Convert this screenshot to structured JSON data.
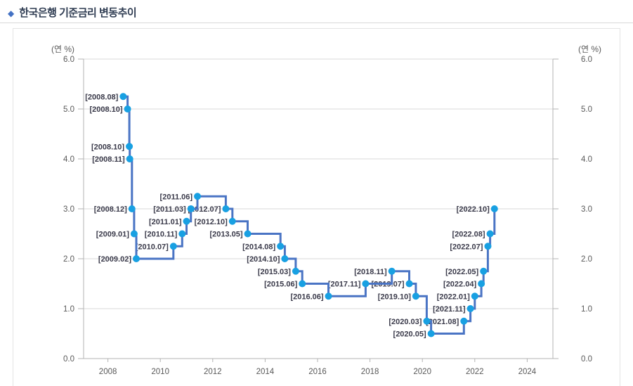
{
  "header": {
    "bullet": "◆",
    "title": "한국은행 기준금리 변동추이"
  },
  "chart_data": {
    "type": "line",
    "step": true,
    "title": "한국은행 기준금리 변동추이",
    "unit_label_left": "(연 %)",
    "unit_label_right": "(연 %)",
    "xlabel": "",
    "ylabel": "(연 %)",
    "ylim": [
      0.0,
      6.0
    ],
    "grid": true,
    "legend": "none",
    "y_ticks": [
      "6.0",
      "5.0",
      "4.0",
      "3.0",
      "2.0",
      "1.0",
      "0.0"
    ],
    "y_tick_values": [
      6.0,
      5.0,
      4.0,
      3.0,
      2.0,
      1.0,
      0.0
    ],
    "x_ticks": [
      "2008",
      "2010",
      "2012",
      "2014",
      "2016",
      "2018",
      "2020",
      "2022",
      "2024"
    ],
    "x_tick_values": [
      2008,
      2010,
      2012,
      2014,
      2016,
      2018,
      2020,
      2022,
      2024
    ],
    "colors": {
      "line": "#4a74c4",
      "marker": "#18a0e2",
      "point_label": "#3a3a4a",
      "grid": "#d9d9d9",
      "axis": "#b3b3b3",
      "tick_text": "#595959",
      "title_text": "#2f3c52",
      "bullet": "#4472c4"
    },
    "points": [
      {
        "label": "[2008.08]",
        "year": 2008,
        "month": 8,
        "value": 5.25
      },
      {
        "label": "[2008.10]",
        "year": 2008,
        "month": 10,
        "value": 5.0
      },
      {
        "label": "[2008.10]",
        "year": 2008,
        "month": 10,
        "value": 4.25
      },
      {
        "label": "[2008.11]",
        "year": 2008,
        "month": 11,
        "value": 4.0
      },
      {
        "label": "[2008.12]",
        "year": 2008,
        "month": 12,
        "value": 3.0
      },
      {
        "label": "[2009.01]",
        "year": 2009,
        "month": 1,
        "value": 2.5
      },
      {
        "label": "[2009.02]",
        "year": 2009,
        "month": 2,
        "value": 2.0
      },
      {
        "label": "[2010.07]",
        "year": 2010,
        "month": 7,
        "value": 2.25
      },
      {
        "label": "[2010.11]",
        "year": 2010,
        "month": 11,
        "value": 2.5
      },
      {
        "label": "[2011.01]",
        "year": 2011,
        "month": 1,
        "value": 2.75
      },
      {
        "label": "[2011.03]",
        "year": 2011,
        "month": 3,
        "value": 3.0
      },
      {
        "label": "[2011.06]",
        "year": 2011,
        "month": 6,
        "value": 3.25
      },
      {
        "label": "[2012.07]",
        "year": 2012,
        "month": 7,
        "value": 3.0
      },
      {
        "label": "[2012.10]",
        "year": 2012,
        "month": 10,
        "value": 2.75
      },
      {
        "label": "[2013.05]",
        "year": 2013,
        "month": 5,
        "value": 2.5
      },
      {
        "label": "[2014.08]",
        "year": 2014,
        "month": 8,
        "value": 2.25
      },
      {
        "label": "[2014.10]",
        "year": 2014,
        "month": 10,
        "value": 2.0
      },
      {
        "label": "[2015.03]",
        "year": 2015,
        "month": 3,
        "value": 1.75
      },
      {
        "label": "[2015.06]",
        "year": 2015,
        "month": 6,
        "value": 1.5
      },
      {
        "label": "[2016.06]",
        "year": 2016,
        "month": 6,
        "value": 1.25
      },
      {
        "label": "[2017.11]",
        "year": 2017,
        "month": 11,
        "value": 1.5
      },
      {
        "label": "[2018.11]",
        "year": 2018,
        "month": 11,
        "value": 1.75
      },
      {
        "label": "[2019.07]",
        "year": 2019,
        "month": 7,
        "value": 1.5
      },
      {
        "label": "[2019.10]",
        "year": 2019,
        "month": 10,
        "value": 1.25
      },
      {
        "label": "[2020.03]",
        "year": 2020,
        "month": 3,
        "value": 0.75
      },
      {
        "label": "[2020.05]",
        "year": 2020,
        "month": 5,
        "value": 0.5
      },
      {
        "label": "[2021.08]",
        "year": 2021,
        "month": 8,
        "value": 0.75
      },
      {
        "label": "[2021.11]",
        "year": 2021,
        "month": 11,
        "value": 1.0
      },
      {
        "label": "[2022.01]",
        "year": 2022,
        "month": 1,
        "value": 1.25
      },
      {
        "label": "[2022.04]",
        "year": 2022,
        "month": 4,
        "value": 1.5
      },
      {
        "label": "[2022.05]",
        "year": 2022,
        "month": 5,
        "value": 1.75
      },
      {
        "label": "[2022.07]",
        "year": 2022,
        "month": 7,
        "value": 2.25
      },
      {
        "label": "[2022.08]",
        "year": 2022,
        "month": 8,
        "value": 2.5
      },
      {
        "label": "[2022.10]",
        "year": 2022,
        "month": 10,
        "value": 3.0
      }
    ]
  }
}
